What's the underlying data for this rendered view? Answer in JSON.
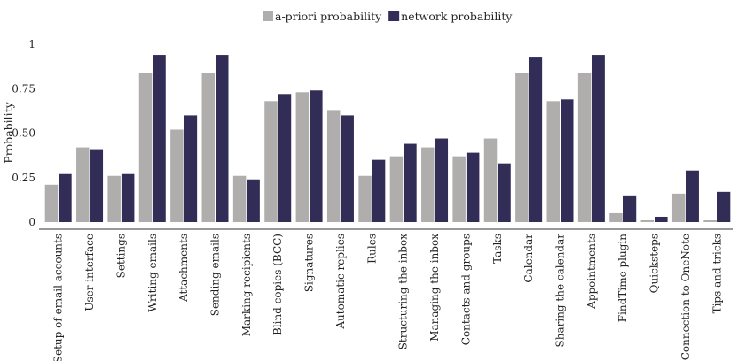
{
  "chart_data": {
    "type": "bar",
    "title": "",
    "xlabel": "",
    "ylabel": "Probability",
    "ylim": [
      0,
      1
    ],
    "yticks": [
      0,
      0.25,
      0.5,
      0.75,
      1
    ],
    "ytick_labels": [
      "0",
      "0.25",
      "0.50",
      "0.75",
      "1"
    ],
    "grid": false,
    "legend_position": "top-center",
    "categories": [
      "Setup of email accounts",
      "User interface",
      "Settings",
      "Writing emails",
      "Attachments",
      "Sending emails",
      "Marking recipients",
      "Blind copies (BCC)",
      "Signatures",
      "Automatic replies",
      "Rules",
      "Structuring the inbox",
      "Managing the inbox",
      "Contacts and groups",
      "Tasks",
      "Calendar",
      "Sharing the calendar",
      "Appointments",
      "FindTime plugin",
      "Quicksteps",
      "Connection to OneNote",
      "Tips and tricks"
    ],
    "series": [
      {
        "name": "a-priori probability",
        "color": "#b0adad",
        "values": [
          0.21,
          0.42,
          0.26,
          0.84,
          0.52,
          0.84,
          0.26,
          0.68,
          0.73,
          0.63,
          0.26,
          0.37,
          0.42,
          0.37,
          0.47,
          0.84,
          0.68,
          0.84,
          0.05,
          0.01,
          0.16,
          0.01
        ]
      },
      {
        "name": "network probability",
        "color": "#322d57",
        "values": [
          0.27,
          0.41,
          0.27,
          0.94,
          0.6,
          0.94,
          0.24,
          0.72,
          0.74,
          0.6,
          0.35,
          0.44,
          0.47,
          0.39,
          0.33,
          0.93,
          0.69,
          0.94,
          0.15,
          0.03,
          0.29,
          0.17
        ]
      }
    ]
  }
}
